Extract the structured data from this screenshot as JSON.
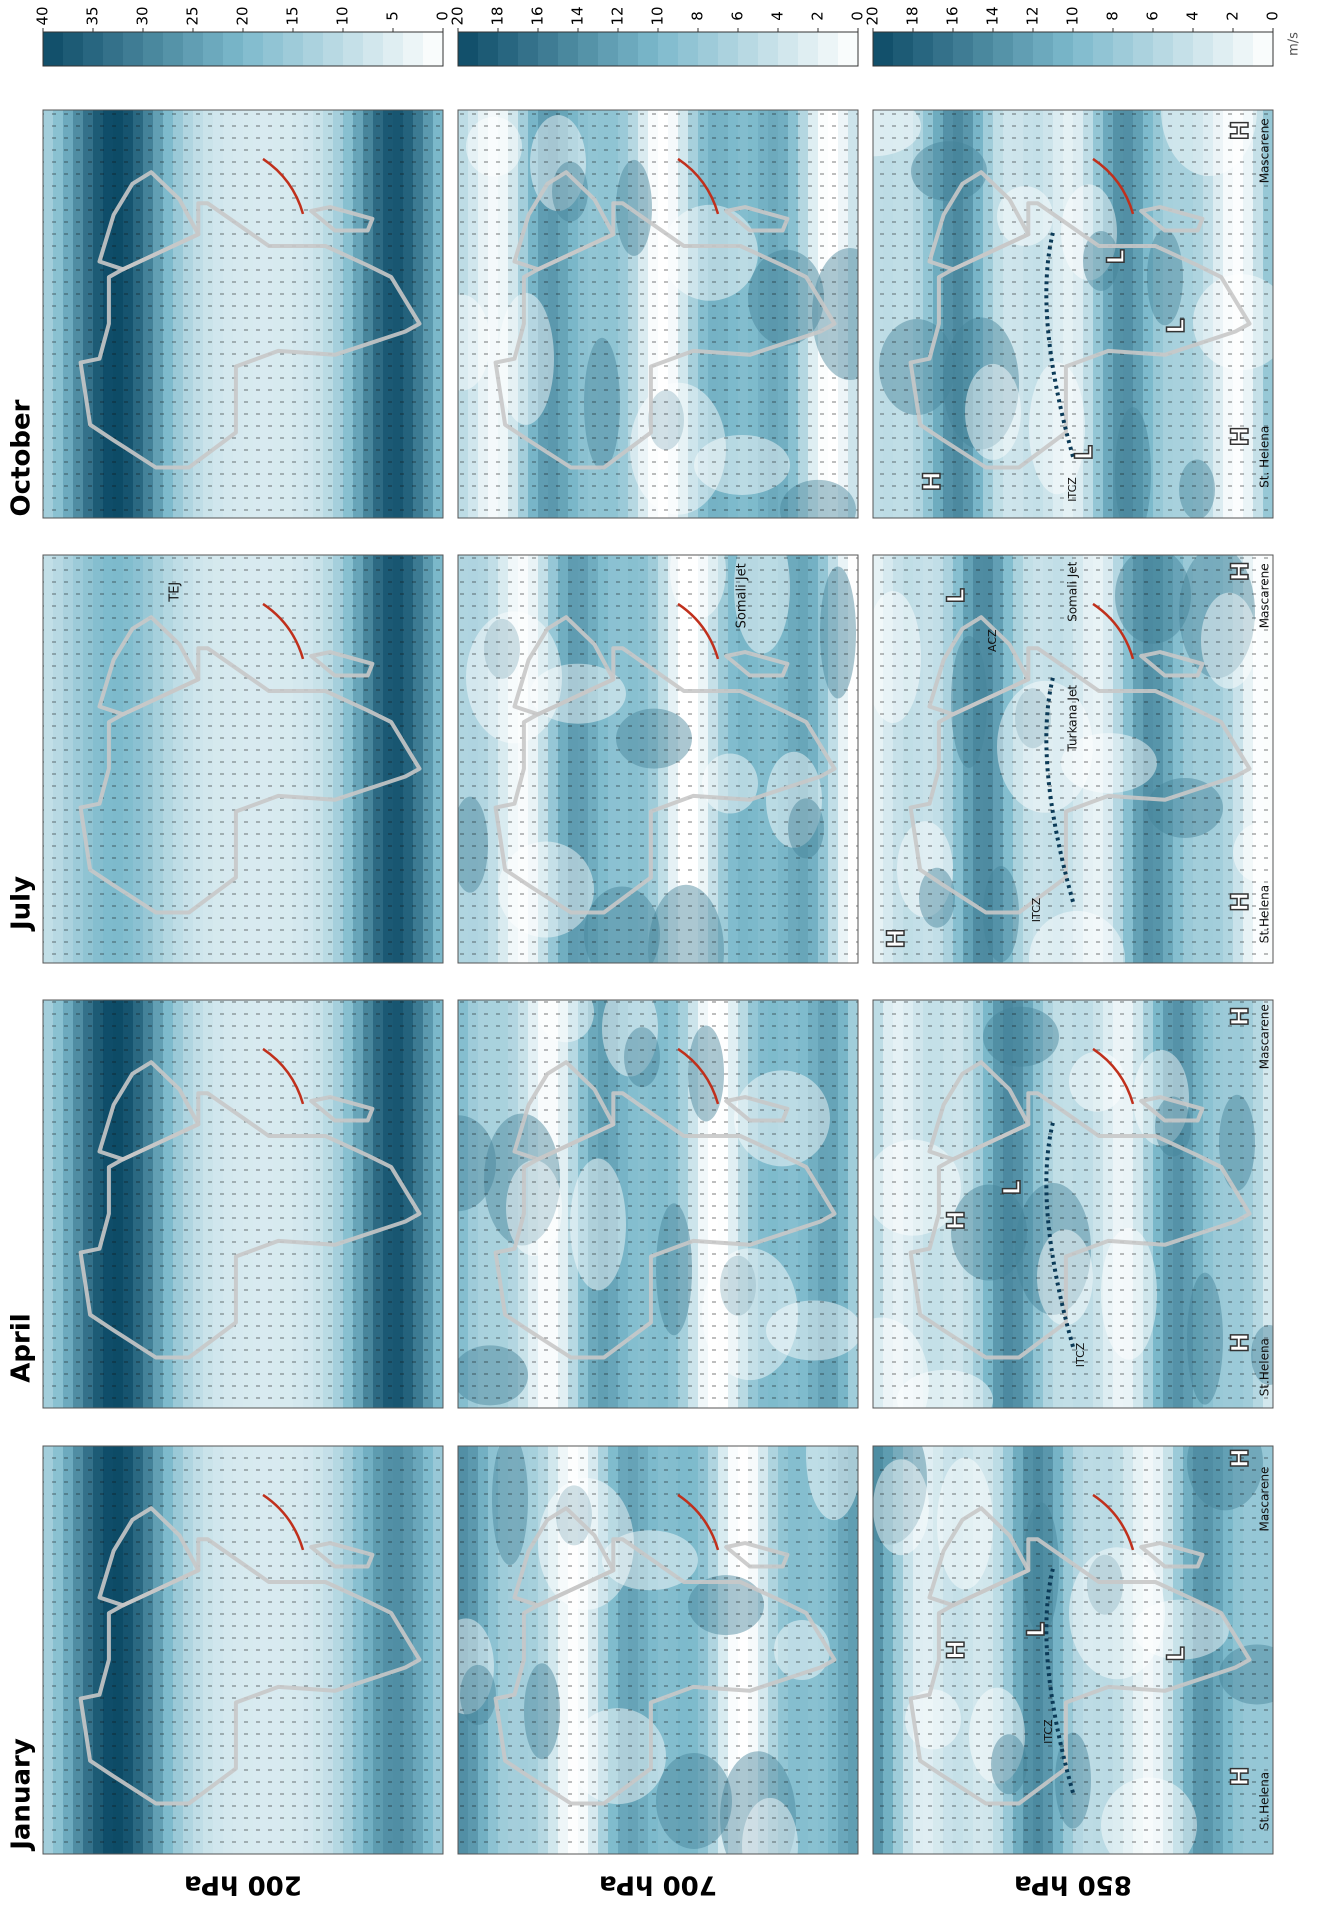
{
  "months": [
    "January",
    "April",
    "July",
    "October"
  ],
  "levels": [
    "200 hPa",
    "700 hPa",
    "850 hPa"
  ],
  "colorbars": [
    {
      "lim": [
        0,
        40
      ],
      "ticks": [
        0,
        5,
        10,
        15,
        20,
        25,
        30,
        35,
        40
      ]
    },
    {
      "lim": [
        0,
        20
      ],
      "ticks": [
        0,
        2,
        4,
        6,
        8,
        10,
        12,
        14,
        16,
        18,
        20
      ]
    },
    {
      "lim": [
        0,
        20
      ],
      "ticks": [
        0,
        2,
        4,
        6,
        8,
        10,
        12,
        14,
        16,
        18,
        20
      ]
    }
  ],
  "unit": "m/s",
  "annotations": [
    [
      [],
      [],
      [
        "TEJ"
      ],
      []
    ],
    [
      [],
      [],
      [
        "Somali Jet"
      ],
      []
    ],
    [
      [
        "H",
        "St.Helena",
        "H",
        "Mascarene",
        "H",
        "L",
        "L",
        "ITCZ"
      ],
      [
        "H",
        "St.Helena",
        "H",
        "Mascarene",
        "H",
        "L",
        "ITCZ"
      ],
      [
        "H",
        "St.Helena",
        "H",
        "Mascarene",
        "H",
        "L",
        "ACZ",
        "Somali Jet",
        "Turkana Jet",
        "ITCZ"
      ],
      [
        "H",
        "St. Helena",
        "H",
        "Mascarene",
        "L",
        "L",
        "L",
        "H",
        "ITCZ"
      ]
    ]
  ]
}
